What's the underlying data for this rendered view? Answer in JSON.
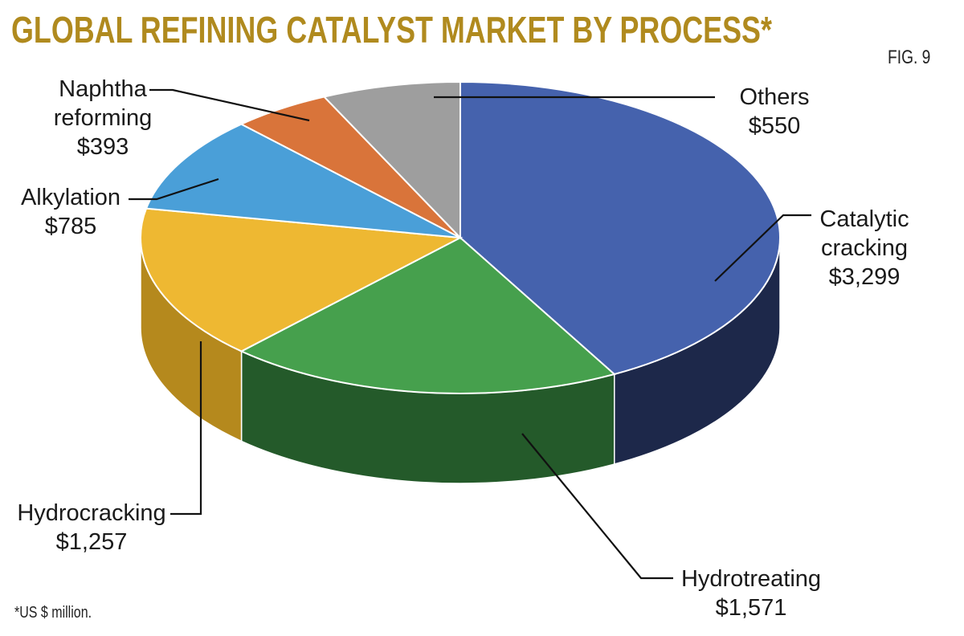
{
  "title": "GLOBAL REFINING CATALYST MARKET BY PROCESS*",
  "fig_label": "FIG. 9",
  "footnote": "*US $ million.",
  "chart_data": {
    "type": "pie",
    "title": "GLOBAL REFINING CATALYST MARKET BY PROCESS*",
    "unit": "US $ million",
    "slices": [
      {
        "name_lines": [
          "Catalytic",
          "cracking"
        ],
        "value": 3299,
        "value_label": "$3,299",
        "color": "#4562ad",
        "side_color": "#1d284a"
      },
      {
        "name_lines": [
          "Hydrotreating"
        ],
        "value": 1571,
        "value_label": "$1,571",
        "color": "#46a04d",
        "side_color": "#245a2a"
      },
      {
        "name_lines": [
          "Hydrocracking"
        ],
        "value": 1257,
        "value_label": "$1,257",
        "color": "#eeb832",
        "side_color": "#b5891d"
      },
      {
        "name_lines": [
          "Alkylation"
        ],
        "value": 785,
        "value_label": "$785",
        "color": "#4a9fd8",
        "side_color": "#2a6a96"
      },
      {
        "name_lines": [
          "Naphtha",
          "reforming"
        ],
        "value": 393,
        "value_label": "$393",
        "color": "#d9743a",
        "side_color": "#8f4520"
      },
      {
        "name_lines": [
          "Others"
        ],
        "value": 550,
        "value_label": "$550",
        "color": "#9e9e9e",
        "side_color": "#666666"
      }
    ]
  }
}
